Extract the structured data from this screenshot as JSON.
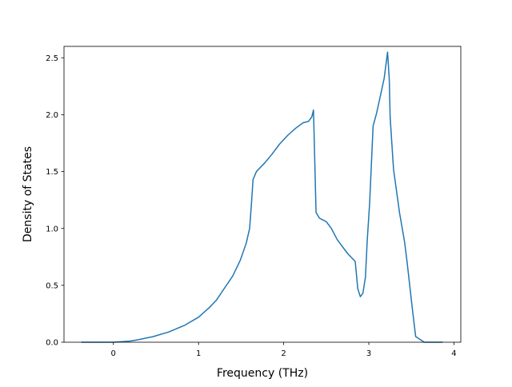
{
  "chart_data": {
    "type": "line",
    "title": "",
    "xlabel": "Frequency (THz)",
    "ylabel": "Density of States",
    "xlim": [
      -0.58,
      4.08
    ],
    "ylim": [
      0.0,
      2.6
    ],
    "xticks": [
      0,
      1,
      2,
      3,
      4
    ],
    "xtick_labels": [
      "0",
      "1",
      "2",
      "3",
      "4"
    ],
    "yticks": [
      0.0,
      0.5,
      1.0,
      1.5,
      2.0,
      2.5
    ],
    "ytick_labels": [
      "0.0",
      "0.5",
      "1.0",
      "1.5",
      "2.0",
      "2.5"
    ],
    "grid": false,
    "line_color": "#1f77b4",
    "series": [
      {
        "x": [
          -0.37,
          0.0,
          0.19,
          0.28,
          0.47,
          0.65,
          0.84,
          1.0,
          1.12,
          1.21,
          1.3,
          1.4,
          1.49,
          1.56,
          1.6,
          1.62,
          1.64,
          1.68,
          1.77,
          1.86,
          1.95,
          2.05,
          2.14,
          2.23,
          2.29,
          2.33,
          2.35,
          2.38,
          2.42,
          2.5,
          2.56,
          2.63,
          2.75,
          2.84,
          2.87,
          2.9,
          2.93,
          2.96,
          2.98,
          3.01,
          3.05,
          3.09,
          3.14,
          3.18,
          3.22,
          3.24,
          3.25,
          3.29,
          3.36,
          3.42,
          3.45,
          3.48,
          3.51,
          3.55,
          3.65,
          3.86
        ],
        "y": [
          0.0,
          0.0,
          0.01,
          0.02,
          0.05,
          0.09,
          0.15,
          0.22,
          0.3,
          0.37,
          0.47,
          0.58,
          0.72,
          0.87,
          1.0,
          1.2,
          1.43,
          1.5,
          1.57,
          1.65,
          1.74,
          1.82,
          1.88,
          1.93,
          1.94,
          1.98,
          2.04,
          1.14,
          1.09,
          1.06,
          1.0,
          0.9,
          0.78,
          0.71,
          0.47,
          0.4,
          0.43,
          0.57,
          0.88,
          1.23,
          1.9,
          2.01,
          2.18,
          2.32,
          2.55,
          2.31,
          1.98,
          1.52,
          1.14,
          0.88,
          0.7,
          0.5,
          0.3,
          0.05,
          0.0,
          0.0
        ]
      }
    ]
  }
}
